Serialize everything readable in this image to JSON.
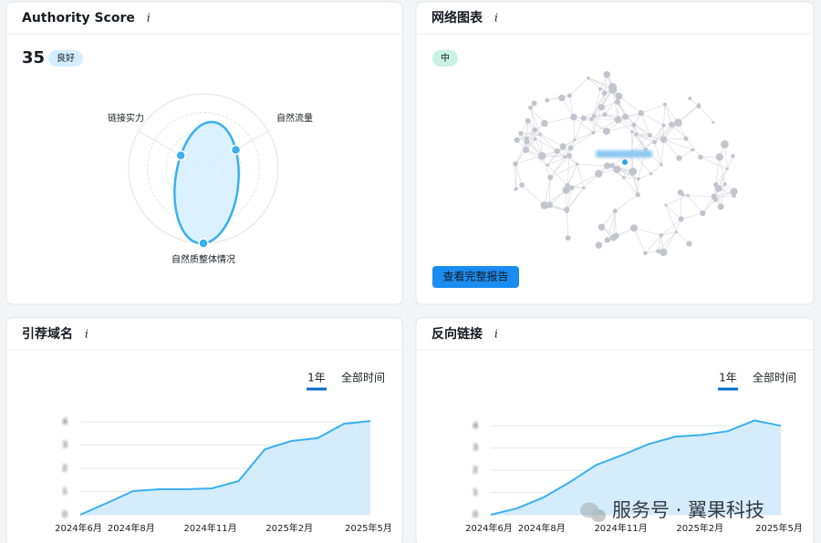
{
  "authority": {
    "title": "Authority Score",
    "info": "i",
    "score": 35,
    "badge": "良好",
    "chart_data": {
      "type": "radar",
      "axes": [
        "链接实力",
        "自然流量",
        "自然质整体情况"
      ],
      "values": [
        35,
        50,
        100
      ],
      "rlim": [
        0,
        100
      ],
      "rticks": [
        25,
        50,
        75,
        100
      ],
      "color": "#3ab0f0"
    }
  },
  "network": {
    "title": "网络图表",
    "info": "i",
    "badge": "中",
    "button": "查看完整报告"
  },
  "referring": {
    "title": "引荐域名",
    "info": "i",
    "toggle": [
      "1年",
      "全部时间"
    ],
    "chart_data": {
      "type": "area",
      "color": "#3ab0f0",
      "categories": [
        "2024年6月",
        null,
        "2024年8月",
        null,
        null,
        "2024年11月",
        null,
        null,
        "2025年2月",
        null,
        null,
        "2025年5月"
      ],
      "values": [
        0,
        0.5,
        1.02,
        1.1,
        1.1,
        1.14,
        1.45,
        2.82,
        3.18,
        3.3,
        3.92,
        4.04
      ],
      "ylim": [
        0,
        4.2
      ],
      "yticks": [
        0,
        1,
        2,
        3,
        4
      ],
      "grid": true
    }
  },
  "backlinks": {
    "title": "反向链接",
    "info": "i",
    "toggle": [
      "1年",
      "全部时间"
    ],
    "chart_data": {
      "type": "area",
      "color": "#3ab0f0",
      "categories": [
        "2024年6月",
        null,
        "2024年8月",
        null,
        null,
        "2024年11月",
        null,
        null,
        "2025年2月",
        null,
        null,
        "2025年5月"
      ],
      "values": [
        0,
        0.29,
        0.78,
        1.47,
        2.24,
        2.69,
        3.18,
        3.51,
        3.59,
        3.76,
        4.24,
        4.0
      ],
      "ylim": [
        0,
        4.3
      ],
      "yticks": [
        0,
        1,
        2,
        3,
        4
      ],
      "grid": true
    }
  },
  "watermark": "服务号 · 翼果科技"
}
